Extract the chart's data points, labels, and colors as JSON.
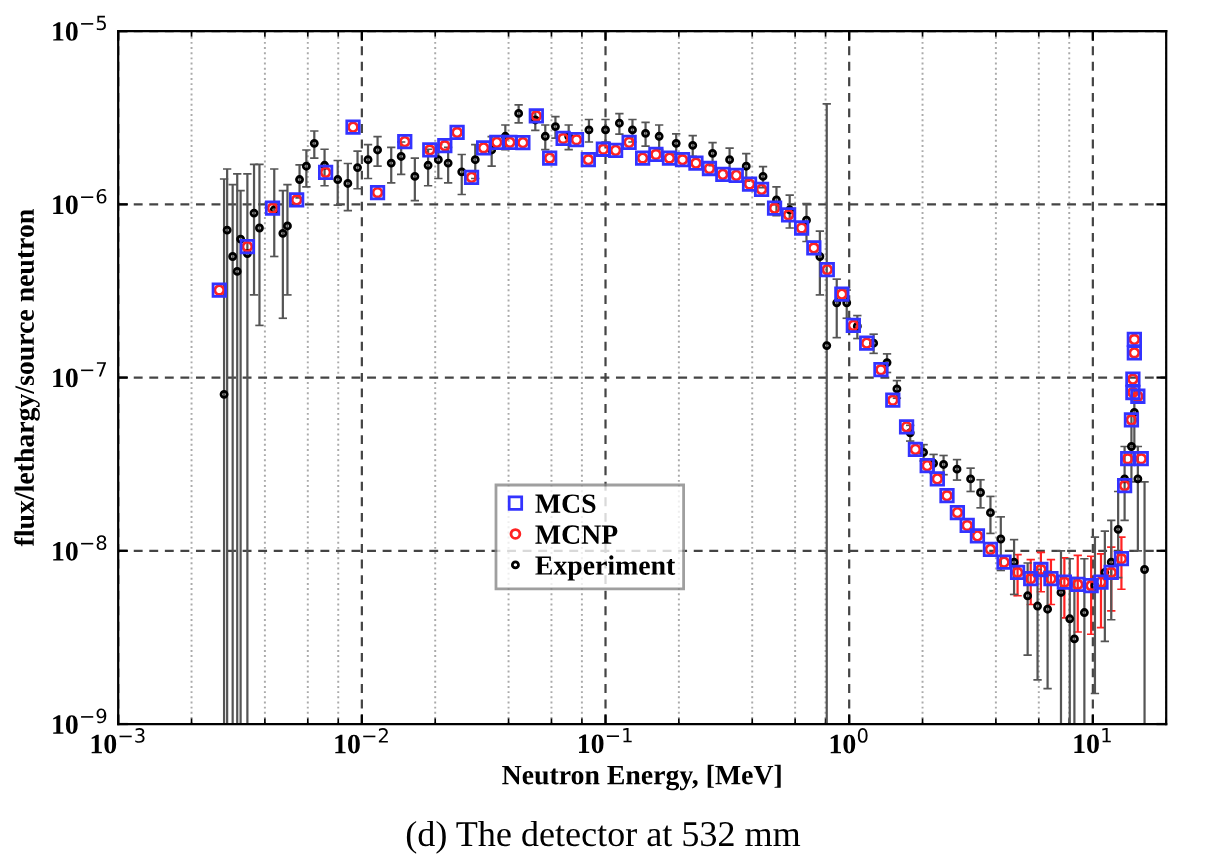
{
  "chart_data": {
    "type": "scatter",
    "xlabel": "Neutron Energy, [MeV]",
    "ylabel": "flux/lethargy/source neutron",
    "annotations": [
      "(d) The detector at 532 mm"
    ],
    "log": "xy",
    "xlim": [
      0.001,
      20
    ],
    "xticks": [
      {
        "value": 0.001,
        "label": "10$^{−3}$"
      },
      {
        "value": 0.01,
        "label": "10$^{−2}$"
      },
      {
        "value": 0.1,
        "label": "10$^{−1}$"
      },
      {
        "value": 1,
        "label": "10$^{0}$"
      },
      {
        "value": 10,
        "label": "10$^{1}$"
      }
    ],
    "ylim": [
      1e-09,
      1e-05
    ],
    "yticks": [
      {
        "value": 1e-09,
        "label": "10$^{−9}$"
      },
      {
        "value": 1e-08,
        "label": "10$^{−8}$"
      },
      {
        "value": 1e-07,
        "label": "10$^{−7}$"
      },
      {
        "value": 1e-06,
        "label": "10$^{−6}$"
      },
      {
        "value": 1e-05,
        "label": "10$^{−5}$"
      }
    ],
    "grid": true,
    "legend": "center",
    "series": [
      {
        "name": "MCS",
        "color": "#3333ff",
        "marker": "square",
        "x": [
          0.0026,
          0.00339,
          0.0043,
          0.0054,
          0.0071,
          0.0092,
          0.0116,
          0.015,
          0.019,
          0.0219,
          0.0246,
          0.0282,
          0.0316,
          0.0358,
          0.0405,
          0.0458,
          0.052,
          0.059,
          0.067,
          0.076,
          0.085,
          0.098,
          0.11,
          0.125,
          0.142,
          0.161,
          0.183,
          0.207,
          0.235,
          0.267,
          0.303,
          0.344,
          0.39,
          0.437,
          0.494,
          0.564,
          0.638,
          0.716,
          0.813,
          0.933,
          1.04,
          1.18,
          1.35,
          1.51,
          1.72,
          1.87,
          2.09,
          2.3,
          2.52,
          2.78,
          3.05,
          3.36,
          3.8,
          4.32,
          4.91,
          5.56,
          6.12,
          6.73,
          7.64,
          8.67,
          9.84,
          10.8,
          11.9,
          13.1,
          13.5,
          13.9,
          14.4,
          14.6,
          14.6,
          14.8,
          14.8,
          15.3,
          15.8
        ],
        "values": [
          3.2e-07,
          5.7e-07,
          9.5e-07,
          1.06e-06,
          1.53e-06,
          2.79e-06,
          1.17e-06,
          2.3e-06,
          2.06e-06,
          2.18e-06,
          2.6e-06,
          1.43e-06,
          2.12e-06,
          2.28e-06,
          2.28e-06,
          2.27e-06,
          3.24e-06,
          1.85e-06,
          2.4e-06,
          2.36e-06,
          1.81e-06,
          2.08e-06,
          2.05e-06,
          2.28e-06,
          1.85e-06,
          1.94e-06,
          1.85e-06,
          1.81e-06,
          1.73e-06,
          1.61e-06,
          1.49e-06,
          1.47e-06,
          1.31e-06,
          1.22e-06,
          9.5e-07,
          8.7e-07,
          7.3e-07,
          5.6e-07,
          4.2e-07,
          3.03e-07,
          2e-07,
          1.58e-07,
          1.11e-07,
          7.4e-08,
          5.2e-08,
          3.85e-08,
          3.1e-08,
          2.6e-08,
          2.08e-08,
          1.66e-08,
          1.4e-08,
          1.22e-08,
          1.02e-08,
          8.6e-09,
          7.5e-09,
          6.9e-09,
          7.8e-09,
          6.9e-09,
          6.6e-09,
          6.4e-09,
          6.3e-09,
          6.6e-09,
          7.5e-09,
          9e-09,
          2.38e-08,
          3.4e-08,
          5.7e-08,
          8.2e-08,
          9.8e-08,
          1.39e-07,
          1.66e-07,
          7.8e-08,
          3.4e-08
        ]
      },
      {
        "name": "MCNP",
        "color": "#ff2222",
        "marker": "circle",
        "x": [
          0.0026,
          0.00339,
          0.0043,
          0.0054,
          0.0071,
          0.0092,
          0.0116,
          0.015,
          0.019,
          0.0219,
          0.0246,
          0.0282,
          0.0316,
          0.0358,
          0.0405,
          0.0458,
          0.052,
          0.059,
          0.067,
          0.076,
          0.085,
          0.098,
          0.11,
          0.125,
          0.142,
          0.161,
          0.183,
          0.207,
          0.235,
          0.267,
          0.303,
          0.344,
          0.39,
          0.437,
          0.494,
          0.564,
          0.638,
          0.716,
          0.813,
          0.933,
          1.04,
          1.18,
          1.35,
          1.51,
          1.72,
          1.87,
          2.09,
          2.3,
          2.52,
          2.78,
          3.05,
          3.36,
          3.8,
          4.32,
          4.91,
          5.56,
          6.12,
          6.73,
          7.64,
          8.67,
          9.84,
          10.8,
          11.9,
          13.1,
          13.5,
          13.9,
          14.4,
          14.6,
          14.6,
          14.8,
          14.8,
          15.3,
          15.8
        ],
        "values": [
          3.2e-07,
          5.7e-07,
          9.5e-07,
          1.06e-06,
          1.53e-06,
          2.79e-06,
          1.17e-06,
          2.3e-06,
          2.06e-06,
          2.18e-06,
          2.6e-06,
          1.43e-06,
          2.12e-06,
          2.28e-06,
          2.28e-06,
          2.27e-06,
          3.24e-06,
          1.85e-06,
          2.4e-06,
          2.36e-06,
          1.81e-06,
          2.08e-06,
          2.05e-06,
          2.28e-06,
          1.85e-06,
          1.94e-06,
          1.85e-06,
          1.81e-06,
          1.73e-06,
          1.61e-06,
          1.49e-06,
          1.47e-06,
          1.31e-06,
          1.22e-06,
          9.5e-07,
          8.7e-07,
          7.3e-07,
          5.6e-07,
          4.2e-07,
          3.03e-07,
          2e-07,
          1.58e-07,
          1.11e-07,
          7.4e-08,
          5.2e-08,
          3.85e-08,
          3.1e-08,
          2.6e-08,
          2.08e-08,
          1.66e-08,
          1.4e-08,
          1.22e-08,
          1.02e-08,
          8.6e-09,
          7.5e-09,
          6.9e-09,
          7.8e-09,
          6.9e-09,
          6.6e-09,
          6.4e-09,
          6.3e-09,
          6.6e-09,
          7.5e-09,
          9e-09,
          2.38e-08,
          3.4e-08,
          5.7e-08,
          8.2e-08,
          9.8e-08,
          1.39e-07,
          1.66e-07,
          7.8e-08,
          3.4e-08
        ],
        "errors": [
          null,
          null,
          null,
          null,
          null,
          null,
          null,
          null,
          null,
          null,
          null,
          null,
          null,
          null,
          null,
          null,
          null,
          null,
          null,
          null,
          null,
          null,
          null,
          null,
          null,
          null,
          null,
          null,
          null,
          null,
          null,
          null,
          null,
          null,
          null,
          null,
          null,
          null,
          null,
          null,
          null,
          null,
          null,
          null,
          null,
          null,
          null,
          null,
          null,
          null,
          null,
          null,
          null,
          null,
          2e-09,
          2e-09,
          2e-09,
          2e-09,
          2.5e-09,
          3e-09,
          3e-09,
          3e-09,
          3e-09,
          3e-09,
          null,
          null,
          null,
          null,
          null,
          null,
          null,
          null,
          null
        ]
      },
      {
        "name": "Experiment",
        "color": "#000000",
        "marker": "circle",
        "x": [
          0.00272,
          0.0028,
          0.00295,
          0.00308,
          0.00318,
          0.00339,
          0.00361,
          0.0038,
          0.00437,
          0.00474,
          0.00495,
          0.00555,
          0.00592,
          0.00638,
          0.00703,
          0.00796,
          0.00876,
          0.0096,
          0.0106,
          0.0116,
          0.0132,
          0.0145,
          0.0165,
          0.0187,
          0.0206,
          0.0226,
          0.0257,
          0.0292,
          0.0341,
          0.0388,
          0.044,
          0.0515,
          0.0566,
          0.0623,
          0.0706,
          0.0855,
          0.1,
          0.114,
          0.129,
          0.146,
          0.166,
          0.195,
          0.228,
          0.275,
          0.323,
          0.378,
          0.443,
          0.503,
          0.57,
          0.668,
          0.758,
          0.809,
          0.889,
          0.977,
          1.08,
          1.26,
          1.43,
          1.57,
          1.78,
          2.02,
          2.22,
          2.44,
          2.77,
          3.15,
          3.46,
          3.8,
          4.19,
          4.75,
          5.4,
          5.93,
          6.52,
          7.4,
          8.04,
          8.4,
          9.23,
          10.2,
          11.2,
          11.9,
          12.7,
          13.5,
          14.4,
          14.8,
          15.3,
          16.3
        ],
        "values": [
          8e-08,
          7.1e-07,
          5e-07,
          4.1e-07,
          6.3e-07,
          5.2e-07,
          8.9e-07,
          7.3e-07,
          9.3e-07,
          6.8e-07,
          7.5e-07,
          1.39e-06,
          1.66e-06,
          2.25e-06,
          1.68e-06,
          1.39e-06,
          1.32e-06,
          1.63e-06,
          1.81e-06,
          2.06e-06,
          1.73e-06,
          1.89e-06,
          1.45e-06,
          1.68e-06,
          1.81e-06,
          1.73e-06,
          1.54e-06,
          1.81e-06,
          2.06e-06,
          2.47e-06,
          3.35e-06,
          3.07e-06,
          2.47e-06,
          2.81e-06,
          2.47e-06,
          2.69e-06,
          2.69e-06,
          2.94e-06,
          2.69e-06,
          2.57e-06,
          2.47e-06,
          2.25e-06,
          2.19e-06,
          1.97e-06,
          1.81e-06,
          1.66e-06,
          1.45e-06,
          1.06e-06,
          9.3e-07,
          8.1e-07,
          5e-07,
          1.53e-07,
          2.7e-07,
          2.7e-07,
          1.98e-07,
          1.58e-07,
          1.22e-07,
          8.6e-08,
          4.8e-08,
          3.7e-08,
          3.2e-08,
          3.15e-08,
          2.96e-08,
          2.6e-08,
          2.17e-08,
          1.66e-08,
          1.17e-08,
          8.6e-09,
          5.5e-09,
          4.8e-09,
          4.6e-09,
          5.75e-09,
          4.05e-09,
          3.1e-09,
          4.4e-09,
          6.3e-09,
          7.5e-09,
          8.6e-09,
          1.33e-08,
          2.6e-08,
          4e-08,
          6.3e-08,
          2.6e-08,
          7.8e-09
        ],
        "errors": [
          [
            1e-09,
            1.4e-06
          ],
          [
            1e-09,
            1.6e-06
          ],
          [
            1e-09,
            1.3e-06
          ],
          [
            1e-09,
            1.5e-06
          ],
          [
            1e-09,
            1.2e-06
          ],
          [
            1e-09,
            1.5e-06
          ],
          [
            3e-07,
            1.7e-06
          ],
          [
            2e-07,
            1.7e-06
          ],
          [
            5e-07,
            1.6e-06
          ],
          [
            2.2e-07,
            1.2e-06
          ],
          [
            3e-07,
            1.3e-06
          ],
          3e-07,
          4e-07,
          4e-07,
          4e-07,
          4e-07,
          4e-07,
          4e-07,
          4e-07,
          4e-07,
          4e-07,
          4e-07,
          4e-07,
          4e-07,
          4e-07,
          4e-07,
          4e-07,
          4e-07,
          4e-07,
          4e-07,
          4e-07,
          4e-07,
          4e-07,
          4e-07,
          4e-07,
          4e-07,
          4e-07,
          4e-07,
          4e-07,
          4e-07,
          4e-07,
          3e-07,
          3e-07,
          3e-07,
          3e-07,
          3e-07,
          2e-07,
          2e-07,
          2e-07,
          2e-07,
          2e-07,
          [
            1e-09,
            3.8e-06
          ],
          1e-07,
          5e-08,
          3e-08,
          2e-08,
          1.5e-08,
          1e-08,
          5e-09,
          4e-09,
          4e-09,
          4e-09,
          4e-09,
          4e-09,
          4e-09,
          4e-09,
          4e-09,
          3e-09,
          3e-09,
          3e-09,
          3e-09,
          [
            1e-09,
            1e-08
          ],
          [
            1e-09,
            9e-09
          ],
          [
            1e-09,
            7e-09
          ],
          [
            1e-09,
            9e-09
          ],
          [
            1.5e-09,
            1.2e-08
          ],
          [
            3e-09,
            1.3e-08
          ],
          [
            4e-09,
            1.5e-08
          ],
          [
            7e-09,
            2.2e-08
          ],
          [
            1.5e-08,
            4e-08
          ],
          [
            2.5e-08,
            6e-08
          ],
          [
            4e-08,
            9e-08
          ],
          [
            1e-08,
            4e-08
          ],
          [
            1e-09,
            2.5e-08
          ]
        ]
      }
    ]
  }
}
